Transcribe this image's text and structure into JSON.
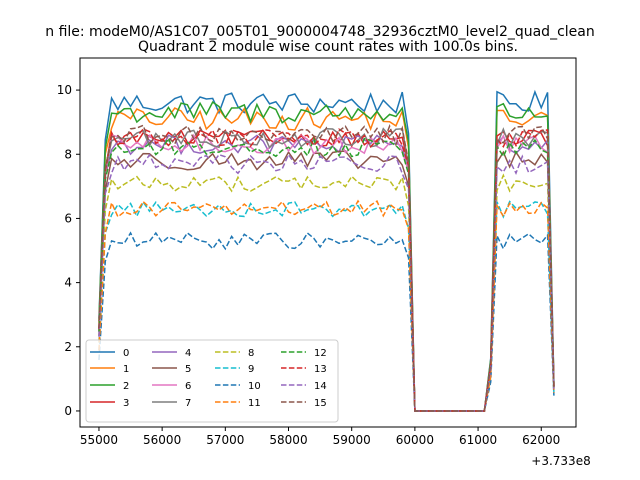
{
  "suptitle": "n file: modeM0/AS1C07_005T01_9000004748_32936cztM0_level2_quad_clean",
  "chart_data": {
    "type": "line",
    "title": "Quadrant 2 module wise count rates with 100.0s bins.",
    "xlabel": "",
    "ylabel": "",
    "x_offset_label": "+3.733e8",
    "xlim": [
      54700,
      62550
    ],
    "ylim": [
      -0.5,
      11.0
    ],
    "x_ticks": [
      55000,
      56000,
      57000,
      58000,
      59000,
      60000,
      61000,
      62000
    ],
    "x_tick_labels": [
      "55000",
      "56000",
      "57000",
      "58000",
      "59000",
      "60000",
      "61000",
      "62000"
    ],
    "y_ticks": [
      0,
      2,
      4,
      6,
      8,
      10
    ],
    "y_tick_labels": [
      "0",
      "2",
      "4",
      "6",
      "8",
      "10"
    ],
    "grid": false,
    "legend_position": "lower-left",
    "legend_columns": 4,
    "timeline": {
      "start": 55000,
      "bin": 100,
      "end": 62200,
      "gap_start": 60000,
      "gap_end": 61100
    },
    "series": [
      {
        "name": "0",
        "color": "#1f77b4",
        "dash": "solid",
        "level": 9.6,
        "amp": 0.35
      },
      {
        "name": "1",
        "color": "#ff7f0e",
        "dash": "solid",
        "level": 9.1,
        "amp": 0.35
      },
      {
        "name": "2",
        "color": "#2ca02c",
        "dash": "solid",
        "level": 9.3,
        "amp": 0.35
      },
      {
        "name": "3",
        "color": "#d62728",
        "dash": "solid",
        "level": 8.5,
        "amp": 0.25
      },
      {
        "name": "4",
        "color": "#9467bd",
        "dash": "solid",
        "level": 8.3,
        "amp": 0.3
      },
      {
        "name": "5",
        "color": "#8c564b",
        "dash": "solid",
        "level": 7.8,
        "amp": 0.3
      },
      {
        "name": "6",
        "color": "#e377c2",
        "dash": "solid",
        "level": 8.3,
        "amp": 0.3
      },
      {
        "name": "7",
        "color": "#7f7f7f",
        "dash": "solid",
        "level": 8.5,
        "amp": 0.3
      },
      {
        "name": "8",
        "color": "#bcbd22",
        "dash": "dashed",
        "level": 7.1,
        "amp": 0.25
      },
      {
        "name": "9",
        "color": "#17becf",
        "dash": "dashed",
        "level": 6.3,
        "amp": 0.25
      },
      {
        "name": "10",
        "color": "#1f77b4",
        "dash": "dashed",
        "level": 5.3,
        "amp": 0.25
      },
      {
        "name": "11",
        "color": "#ff7f0e",
        "dash": "dashed",
        "level": 6.3,
        "amp": 0.25
      },
      {
        "name": "12",
        "color": "#2ca02c",
        "dash": "dashed",
        "level": 8.2,
        "amp": 0.3
      },
      {
        "name": "13",
        "color": "#d62728",
        "dash": "dashed",
        "level": 8.5,
        "amp": 0.3
      },
      {
        "name": "14",
        "color": "#9467bd",
        "dash": "dashed",
        "level": 7.7,
        "amp": 0.3
      },
      {
        "name": "15",
        "color": "#8c564b",
        "dash": "dashed",
        "level": 8.6,
        "amp": 0.3
      }
    ]
  }
}
